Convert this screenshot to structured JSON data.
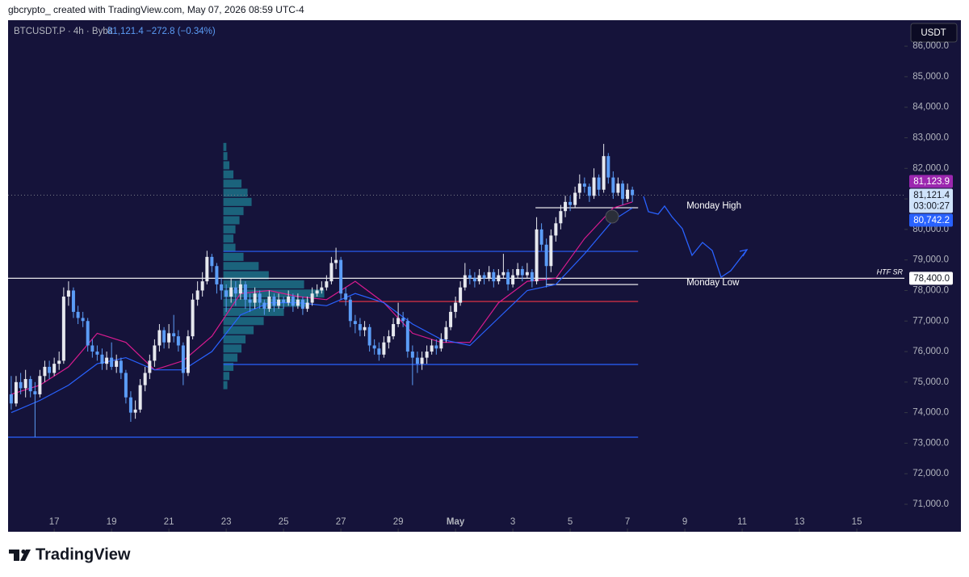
{
  "header": "gbcrypto_ created with TradingView.com, May 07, 2026 08:59 UTC-4",
  "brand": "TradingView",
  "currency_button": "USDT",
  "chart_data": {
    "type": "candlestick",
    "symbol": "BTCUSDT.P · 4h · Bybit",
    "last_price": "81,121.4",
    "change": "−272.8 (−0.34%)",
    "colors": {
      "up": "#e6e8ee",
      "down": "#5b9cf6",
      "background": "#15133a"
    },
    "x": [
      15.5,
      15.67,
      15.83,
      16,
      16.17,
      16.33,
      16.5,
      16.67,
      16.83,
      17,
      17.17,
      17.33,
      17.5,
      17.67,
      17.83,
      18,
      18.17,
      18.33,
      18.5,
      18.67,
      18.83,
      19,
      19.17,
      19.33,
      19.5,
      19.67,
      19.83,
      20,
      20.17,
      20.33,
      20.5,
      20.67,
      20.83,
      21,
      21.17,
      21.33,
      21.5,
      21.67,
      21.83,
      22,
      22.17,
      22.33,
      22.5,
      22.67,
      22.83,
      23,
      23.17,
      23.33,
      23.5,
      23.67,
      23.83,
      24,
      24.17,
      24.33,
      24.5,
      24.67,
      24.83,
      25,
      25.17,
      25.33,
      25.5,
      25.67,
      25.83,
      26,
      26.17,
      26.33,
      26.5,
      26.67,
      26.83,
      27,
      27.17,
      27.33,
      27.5,
      27.67,
      27.83,
      28,
      28.17,
      28.33,
      28.5,
      28.67,
      28.83,
      29,
      29.17,
      29.33,
      29.5,
      29.67,
      29.83,
      30,
      30.17,
      30.33,
      30.5,
      30.67,
      30.83,
      31,
      31.17,
      31.33,
      31.5,
      31.67,
      31.83,
      32,
      32.17,
      32.33,
      32.5,
      32.67,
      32.83,
      33,
      33.17,
      33.33,
      33.5,
      33.67,
      33.83,
      34,
      34.17,
      34.33,
      34.5,
      34.67,
      34.83,
      35,
      35.17,
      35.33,
      35.5,
      35.67,
      35.83,
      36,
      36.17,
      36.33,
      36.5,
      36.67,
      36.83,
      37,
      37.17
    ],
    "ohlc": [
      [
        74600,
        75200,
        74100,
        74300
      ],
      [
        74300,
        75200,
        74200,
        75000
      ],
      [
        75000,
        75300,
        74600,
        74800
      ],
      [
        74800,
        75400,
        74500,
        75100
      ],
      [
        75100,
        75200,
        74500,
        74700
      ],
      [
        74700,
        75000,
        73200,
        74600
      ],
      [
        74600,
        75400,
        74500,
        75200
      ],
      [
        75200,
        75700,
        75000,
        75500
      ],
      [
        75500,
        75700,
        75100,
        75300
      ],
      [
        75300,
        75800,
        75200,
        75600
      ],
      [
        75600,
        76000,
        75400,
        75700
      ],
      [
        75700,
        78100,
        75600,
        77800
      ],
      [
        77800,
        78300,
        77500,
        78000
      ],
      [
        78000,
        78100,
        77100,
        77300
      ],
      [
        77300,
        77500,
        76900,
        77100
      ],
      [
        77100,
        77300,
        76800,
        77000
      ],
      [
        77000,
        77100,
        76000,
        76200
      ],
      [
        76200,
        76400,
        75800,
        76000
      ],
      [
        76000,
        76200,
        75700,
        75900
      ],
      [
        75900,
        76100,
        75400,
        75600
      ],
      [
        75600,
        76000,
        75400,
        75800
      ],
      [
        75800,
        76300,
        75400,
        75500
      ],
      [
        75500,
        75900,
        75300,
        75700
      ],
      [
        75700,
        75800,
        75100,
        75300
      ],
      [
        75300,
        75400,
        74300,
        74500
      ],
      [
        74500,
        74700,
        73700,
        74000
      ],
      [
        74000,
        74400,
        73800,
        74100
      ],
      [
        74100,
        75100,
        74000,
        74900
      ],
      [
        74900,
        75500,
        74700,
        75300
      ],
      [
        75300,
        75900,
        75100,
        75700
      ],
      [
        75700,
        76400,
        75500,
        76200
      ],
      [
        76200,
        76900,
        76000,
        76700
      ],
      [
        76700,
        76800,
        76100,
        76300
      ],
      [
        76300,
        76900,
        76100,
        76600
      ],
      [
        76600,
        77200,
        76300,
        76500
      ],
      [
        76500,
        76700,
        76000,
        76200
      ],
      [
        76200,
        76300,
        74900,
        75300
      ],
      [
        75300,
        76700,
        75200,
        76500
      ],
      [
        76500,
        77900,
        76400,
        77700
      ],
      [
        77700,
        78300,
        77500,
        78000
      ],
      [
        78000,
        78600,
        77800,
        78300
      ],
      [
        78300,
        79300,
        78200,
        79100
      ],
      [
        79100,
        79200,
        78600,
        78800
      ],
      [
        78800,
        78900,
        77900,
        78200
      ],
      [
        78200,
        78400,
        77700,
        78000
      ],
      [
        78000,
        78200,
        77300,
        77800
      ],
      [
        77800,
        78400,
        77600,
        78100
      ],
      [
        78100,
        78300,
        77500,
        77900
      ],
      [
        77900,
        78400,
        77700,
        78200
      ],
      [
        78200,
        78300,
        77400,
        77700
      ],
      [
        77700,
        77900,
        77300,
        77600
      ],
      [
        77600,
        78100,
        77400,
        77900
      ],
      [
        77900,
        78000,
        77400,
        77600
      ],
      [
        77600,
        77700,
        77200,
        77400
      ],
      [
        77400,
        78000,
        77300,
        77800
      ],
      [
        77800,
        77900,
        77300,
        77500
      ],
      [
        77500,
        77900,
        77400,
        77700
      ],
      [
        77700,
        77800,
        77400,
        77600
      ],
      [
        77600,
        78000,
        77500,
        77800
      ],
      [
        77800,
        77900,
        77300,
        77500
      ],
      [
        77500,
        77900,
        77400,
        77700
      ],
      [
        77700,
        77800,
        77200,
        77400
      ],
      [
        77400,
        77800,
        77300,
        77600
      ],
      [
        77600,
        78100,
        77500,
        77900
      ],
      [
        77900,
        78200,
        77800,
        78000
      ],
      [
        78000,
        78300,
        77900,
        78100
      ],
      [
        78100,
        78500,
        78000,
        78300
      ],
      [
        78300,
        79100,
        78200,
        78900
      ],
      [
        78900,
        79400,
        78700,
        79000
      ],
      [
        79000,
        79100,
        77700,
        77900
      ],
      [
        77900,
        78100,
        77500,
        77700
      ],
      [
        77700,
        77800,
        76800,
        77000
      ],
      [
        77000,
        77200,
        76600,
        76900
      ],
      [
        76900,
        77100,
        76500,
        76700
      ],
      [
        76700,
        77000,
        76500,
        76800
      ],
      [
        76800,
        76900,
        76000,
        76200
      ],
      [
        76200,
        76400,
        75900,
        76100
      ],
      [
        76100,
        76300,
        75700,
        75900
      ],
      [
        75900,
        76500,
        75800,
        76300
      ],
      [
        76300,
        76700,
        76100,
        76500
      ],
      [
        76500,
        77100,
        76400,
        76900
      ],
      [
        76900,
        77600,
        76800,
        77100
      ],
      [
        77100,
        77300,
        76800,
        77000
      ],
      [
        77000,
        77100,
        75800,
        76000
      ],
      [
        76000,
        76200,
        74900,
        75800
      ],
      [
        75800,
        76000,
        75300,
        75600
      ],
      [
        75600,
        76000,
        75400,
        75800
      ],
      [
        75800,
        76200,
        75600,
        76000
      ],
      [
        76000,
        76400,
        75900,
        76200
      ],
      [
        76200,
        76400,
        75900,
        76100
      ],
      [
        76100,
        76600,
        76000,
        76400
      ],
      [
        76400,
        77000,
        76300,
        76800
      ],
      [
        76800,
        77500,
        76700,
        77300
      ],
      [
        77300,
        77800,
        77100,
        77600
      ],
      [
        77600,
        78300,
        77500,
        78100
      ],
      [
        78100,
        78900,
        78000,
        78500
      ],
      [
        78500,
        78700,
        78200,
        78400
      ],
      [
        78400,
        78600,
        78100,
        78300
      ],
      [
        78300,
        78700,
        78200,
        78500
      ],
      [
        78500,
        78600,
        78200,
        78400
      ],
      [
        78400,
        78800,
        78300,
        78600
      ],
      [
        78600,
        78700,
        78100,
        78300
      ],
      [
        78300,
        78700,
        78200,
        78500
      ],
      [
        78500,
        79200,
        78400,
        78600
      ],
      [
        78600,
        78700,
        78000,
        78200
      ],
      [
        78200,
        78700,
        78100,
        78500
      ],
      [
        78500,
        78900,
        78400,
        78700
      ],
      [
        78700,
        78800,
        78300,
        78500
      ],
      [
        78500,
        78900,
        78400,
        78600
      ],
      [
        78600,
        78700,
        78100,
        78300
      ],
      [
        78300,
        80400,
        78200,
        80000
      ],
      [
        80000,
        80200,
        79300,
        79500
      ],
      [
        79500,
        79700,
        78100,
        78800
      ],
      [
        78800,
        80000,
        78600,
        79800
      ],
      [
        79800,
        80400,
        79600,
        80200
      ],
      [
        80200,
        80800,
        80000,
        80600
      ],
      [
        80600,
        81100,
        80400,
        80900
      ],
      [
        80900,
        81100,
        80600,
        80800
      ],
      [
        80800,
        81400,
        80700,
        81200
      ],
      [
        81200,
        81800,
        81000,
        81500
      ],
      [
        81500,
        81700,
        81200,
        81400
      ],
      [
        81400,
        81500,
        80900,
        81100
      ],
      [
        81100,
        82000,
        81000,
        81700
      ],
      [
        81700,
        81800,
        81100,
        81300
      ],
      [
        81300,
        82800,
        81200,
        82400
      ],
      [
        82400,
        82500,
        81500,
        81700
      ],
      [
        81700,
        81900,
        81000,
        81200
      ],
      [
        81200,
        81700,
        81100,
        81500
      ],
      [
        81500,
        81600,
        80800,
        81000
      ],
      [
        81000,
        81500,
        80900,
        81300
      ],
      [
        81300,
        81400,
        80900,
        81121.4
      ]
    ],
    "xlim": [
      15.39,
      46.66
    ],
    "xticks": [
      17,
      19,
      21,
      23,
      25,
      27,
      29,
      {
        "value": 31,
        "label": "May"
      },
      {
        "value": 33,
        "label": "3"
      },
      {
        "value": 35,
        "label": "5"
      },
      {
        "value": 37,
        "label": "7"
      },
      {
        "value": 39,
        "label": "9"
      },
      {
        "value": 41,
        "label": "11"
      },
      {
        "value": 43,
        "label": "13"
      },
      {
        "value": 45,
        "label": "15"
      }
    ],
    "ylim": [
      70100,
      86850
    ],
    "yticks": [
      {
        "value": 71000,
        "label": "71,000.0"
      },
      {
        "value": 72000,
        "label": "72,000.0"
      },
      {
        "value": 73000,
        "label": "73,000.0"
      },
      {
        "value": 74000,
        "label": "74,000.0"
      },
      {
        "value": 75000,
        "label": "75,000.0"
      },
      {
        "value": 76000,
        "label": "76,000.0"
      },
      {
        "value": 77000,
        "label": "77,000.0"
      },
      {
        "value": 78000,
        "label": "78,000.0"
      },
      {
        "value": 79000,
        "label": "79,000.0"
      },
      {
        "value": 80000,
        "label": "80,000.0"
      },
      {
        "value": 81000,
        "label": "81,000.0"
      },
      {
        "value": 82000,
        "label": "82,000.0"
      },
      {
        "value": 83000,
        "label": "83,000.0"
      },
      {
        "value": 84000,
        "label": "84,000.0"
      },
      {
        "value": 85000,
        "label": "85,000.0"
      },
      {
        "value": 86000,
        "label": "86,000.0"
      }
    ],
    "moving_averages": [
      {
        "color": "#d81b8f",
        "x": [
          15.5,
          16.5,
          17.5,
          18.5,
          19.5,
          20.5,
          21.5,
          22.5,
          23.5,
          24.5,
          25.5,
          26.5,
          27.5,
          28.5,
          29.5,
          30.5,
          31.5,
          32.5,
          33.5,
          34.5,
          35.5,
          36.5,
          37.17
        ],
        "values": [
          74600,
          74900,
          75500,
          76600,
          76300,
          75400,
          75700,
          76500,
          77900,
          78000,
          77800,
          77700,
          78300,
          77600,
          76600,
          76300,
          76300,
          77600,
          78300,
          78400,
          79700,
          80700,
          80900
        ]
      },
      {
        "color": "#2962ff",
        "x": [
          15.5,
          16.5,
          17.5,
          18.5,
          19.5,
          20.5,
          21.5,
          22.5,
          23.5,
          24.5,
          25.5,
          26.5,
          27.5,
          28.5,
          29.5,
          30.5,
          31.5,
          32.5,
          33.5,
          34.5,
          35.5,
          36.5,
          37.17
        ],
        "values": [
          74000,
          74400,
          74900,
          75600,
          75800,
          75400,
          75400,
          76000,
          77200,
          77600,
          77600,
          77500,
          77900,
          77600,
          76900,
          76400,
          76200,
          77100,
          78000,
          78200,
          79200,
          80300,
          80700
        ]
      }
    ],
    "volume_profile": {
      "x": 22.9,
      "color": "#1f8fa0",
      "levels": [
        74900,
        75200,
        75500,
        75800,
        76100,
        76400,
        76700,
        77000,
        77300,
        77600,
        77900,
        78200,
        78500,
        78800,
        79100,
        79400,
        79700,
        80000,
        80300,
        80600,
        80900,
        81200,
        81500,
        81800,
        82100,
        82400,
        82700
      ],
      "volumes": [
        4,
        6,
        10,
        14,
        18,
        22,
        30,
        40,
        60,
        85,
        100,
        80,
        45,
        35,
        20,
        12,
        10,
        12,
        16,
        20,
        28,
        24,
        18,
        10,
        6,
        4,
        3
      ]
    },
    "levels": [
      {
        "value": 79280,
        "from": 22.9,
        "to": 37.37,
        "color": "#2962ff"
      },
      {
        "value": 78400,
        "name": "HTF SR",
        "from": 15.39,
        "to": 46.66,
        "color": "#ffffff"
      },
      {
        "value": 80709,
        "name": "Monday High",
        "from": 33.79,
        "to": 37.37,
        "color": "#ffffff"
      },
      {
        "value": 78196,
        "name": "Monday Low",
        "from": 34.15,
        "to": 37.37,
        "color": "#ffffff"
      },
      {
        "value": 77640,
        "from": 26.94,
        "to": 37.37,
        "color": "#f23645"
      },
      {
        "value": 75577,
        "from": 22.9,
        "to": 37.37,
        "color": "#2962ff"
      },
      {
        "value": 73196,
        "from": 15.39,
        "to": 37.37,
        "color": "#2962ff"
      }
    ],
    "price_tags": [
      {
        "value": 81123.9,
        "label": "81,123.9",
        "color": "#9c27b0",
        "text_color": "#ffffff"
      },
      {
        "value": 81121.4,
        "label": "81,121.4",
        "countdown": "03:00:27",
        "color": "#cfe3fb",
        "text_color": "#131722"
      },
      {
        "value": 80742.2,
        "label": "80,742.2",
        "color": "#2962ff",
        "text_color": "#ffffff"
      },
      {
        "value": 78400,
        "label": "78,400.0",
        "color": "#ffffff",
        "text_color": "#131722"
      }
    ]
  }
}
